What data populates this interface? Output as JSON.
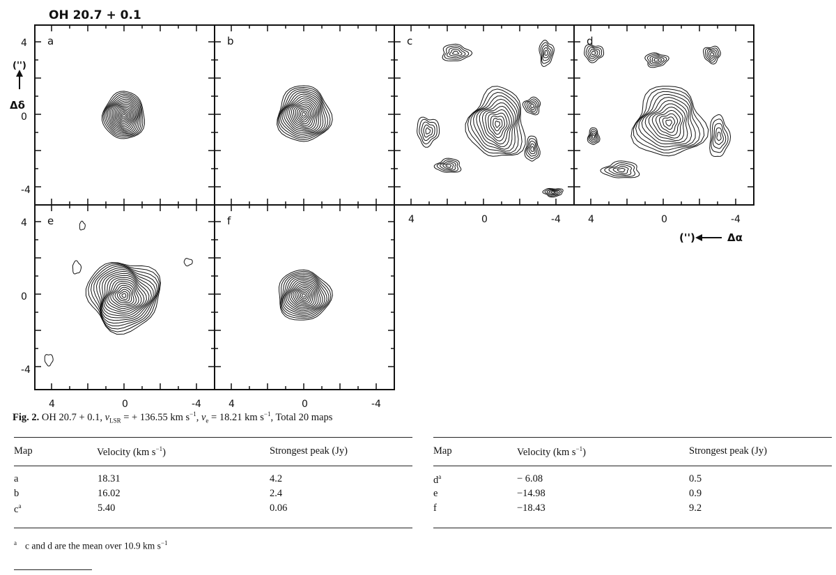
{
  "figure": {
    "title": "OH 20.7 + 0.1",
    "axis_ticks_y": [
      "4",
      "0",
      "-4"
    ],
    "axis_ticks_x": [
      "4",
      "0",
      "-4"
    ],
    "dec_unit": "('')",
    "dec_label": "Δδ",
    "ra_unit": "('')",
    "ra_label": "Δα",
    "panels": [
      {
        "label": "a"
      },
      {
        "label": "b"
      },
      {
        "label": "c"
      },
      {
        "label": "d"
      },
      {
        "label": "e"
      },
      {
        "label": "f"
      }
    ]
  },
  "caption": {
    "fig_label": "Fig. 2.",
    "source": "OH 20.7 + 0.1,",
    "vlsr_symbol": "v",
    "vlsr_sub": "LSR",
    "vlsr_value": "= + 136.55 km s",
    "ve_symbol": "v",
    "ve_sub": "e",
    "ve_value": "= 18.21 km s",
    "exp": "−1",
    "tail": ", Total 20 maps"
  },
  "table": {
    "headers": {
      "map": "Map",
      "velocity": "Velocity (km s",
      "velocity_unit_exp": "−1",
      "velocity_close": ")",
      "peak": "Strongest peak (Jy)"
    },
    "left_rows": [
      {
        "map": "a",
        "sup": "",
        "velocity": "18.31",
        "peak": "4.2"
      },
      {
        "map": "b",
        "sup": "",
        "velocity": "16.02",
        "peak": "2.4"
      },
      {
        "map": "c",
        "sup": "a",
        "velocity": "5.40",
        "peak": "0.06"
      }
    ],
    "right_rows": [
      {
        "map": "d",
        "sup": "a",
        "velocity": "− 6.08",
        "peak": "0.5"
      },
      {
        "map": "e",
        "sup": "",
        "velocity": "−14.98",
        "peak": "0.9"
      },
      {
        "map": "f",
        "sup": "",
        "velocity": "−18.43",
        "peak": "9.2"
      }
    ]
  },
  "footnote": {
    "marker": "a",
    "text": "c and d are the mean over 10.9 km s",
    "exp": "−1"
  }
}
